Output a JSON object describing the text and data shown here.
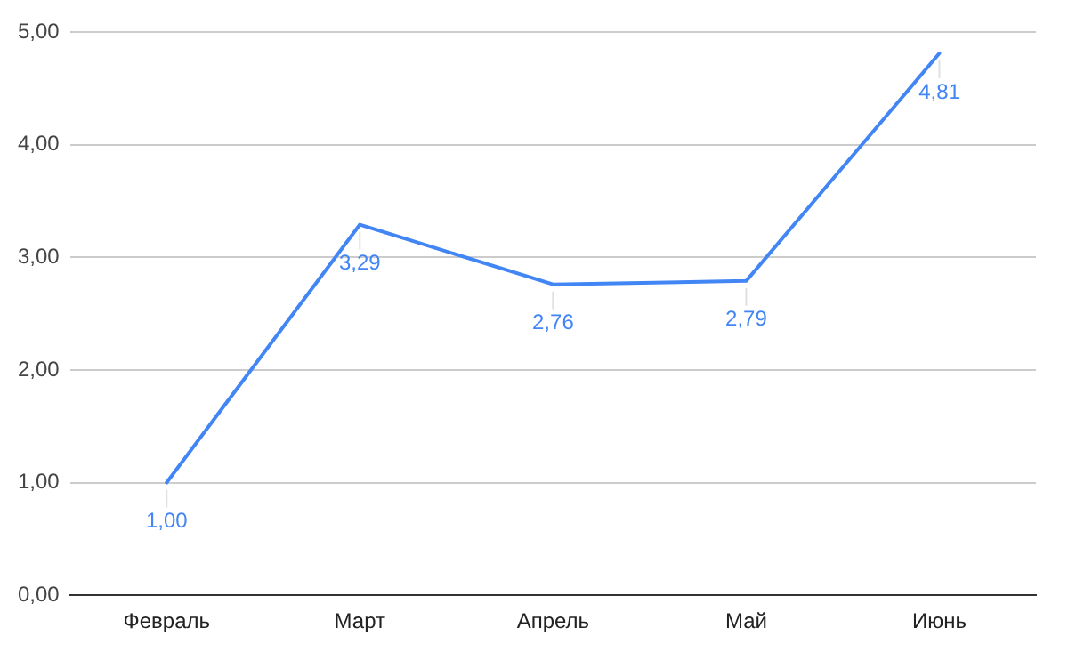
{
  "chart_data": {
    "type": "line",
    "categories": [
      "Февраль",
      "Март",
      "Апрель",
      "Май",
      "Июнь"
    ],
    "series": [
      {
        "color": "#4285f4",
        "values": [
          1.0,
          3.29,
          2.76,
          2.79,
          4.81
        ],
        "value_labels": [
          "1,00",
          "3,29",
          "2,76",
          "2,79",
          "4,81"
        ]
      }
    ],
    "ylim": [
      0,
      5
    ],
    "yticks": [
      {
        "value": 0,
        "label": "0,00"
      },
      {
        "value": 1,
        "label": "1,00"
      },
      {
        "value": 2,
        "label": "2,00"
      },
      {
        "value": 3,
        "label": "3,00"
      },
      {
        "value": 4,
        "label": "4,00"
      },
      {
        "value": 5,
        "label": "5,00"
      }
    ],
    "grid": "y",
    "legend": false,
    "marker": "none",
    "line_style": "solid"
  }
}
